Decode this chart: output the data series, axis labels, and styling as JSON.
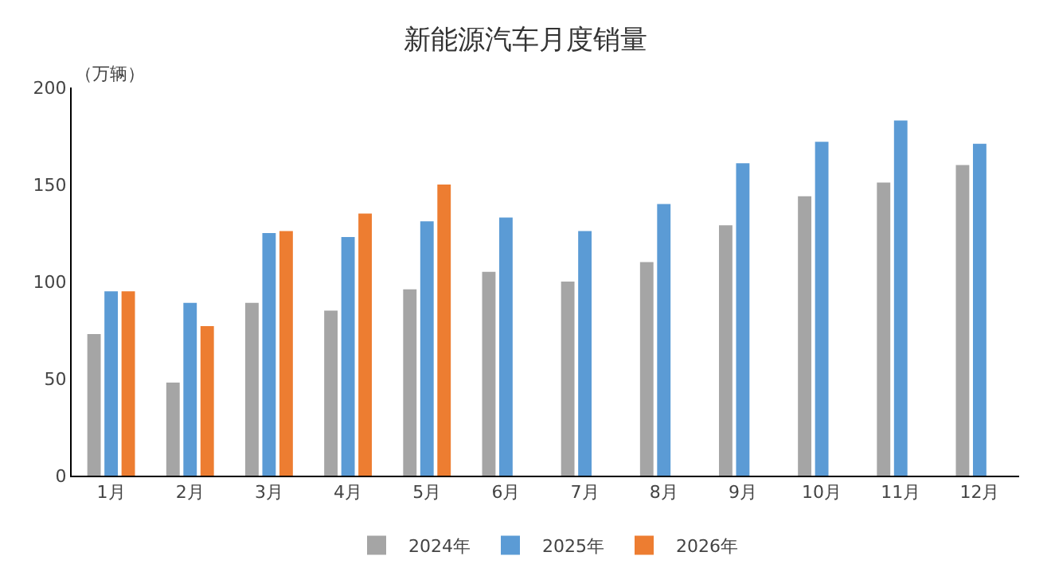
{
  "chart_data": {
    "type": "bar",
    "title": "新能源汽车月度销量",
    "ylabel": "（万辆）",
    "categories": [
      "1月",
      "2月",
      "3月",
      "4月",
      "5月",
      "6月",
      "7月",
      "8月",
      "9月",
      "10月",
      "11月",
      "12月"
    ],
    "series": [
      {
        "name": "2024年",
        "color": "#a5a5a5",
        "values": [
          73,
          48,
          89,
          85,
          96,
          105,
          100,
          110,
          129,
          144,
          151,
          160
        ]
      },
      {
        "name": "2025年",
        "color": "#5b9bd5",
        "values": [
          95,
          89,
          125,
          123,
          131,
          133,
          126,
          140,
          161,
          172,
          183,
          171
        ]
      },
      {
        "name": "2026年",
        "color": "#ed7d31",
        "values": [
          95,
          77,
          126,
          135,
          150,
          null,
          null,
          null,
          null,
          null,
          null,
          null
        ]
      }
    ],
    "ylim": [
      0,
      200
    ],
    "yticks": [
      0,
      50,
      100,
      150,
      200
    ],
    "legend": "bottom"
  }
}
